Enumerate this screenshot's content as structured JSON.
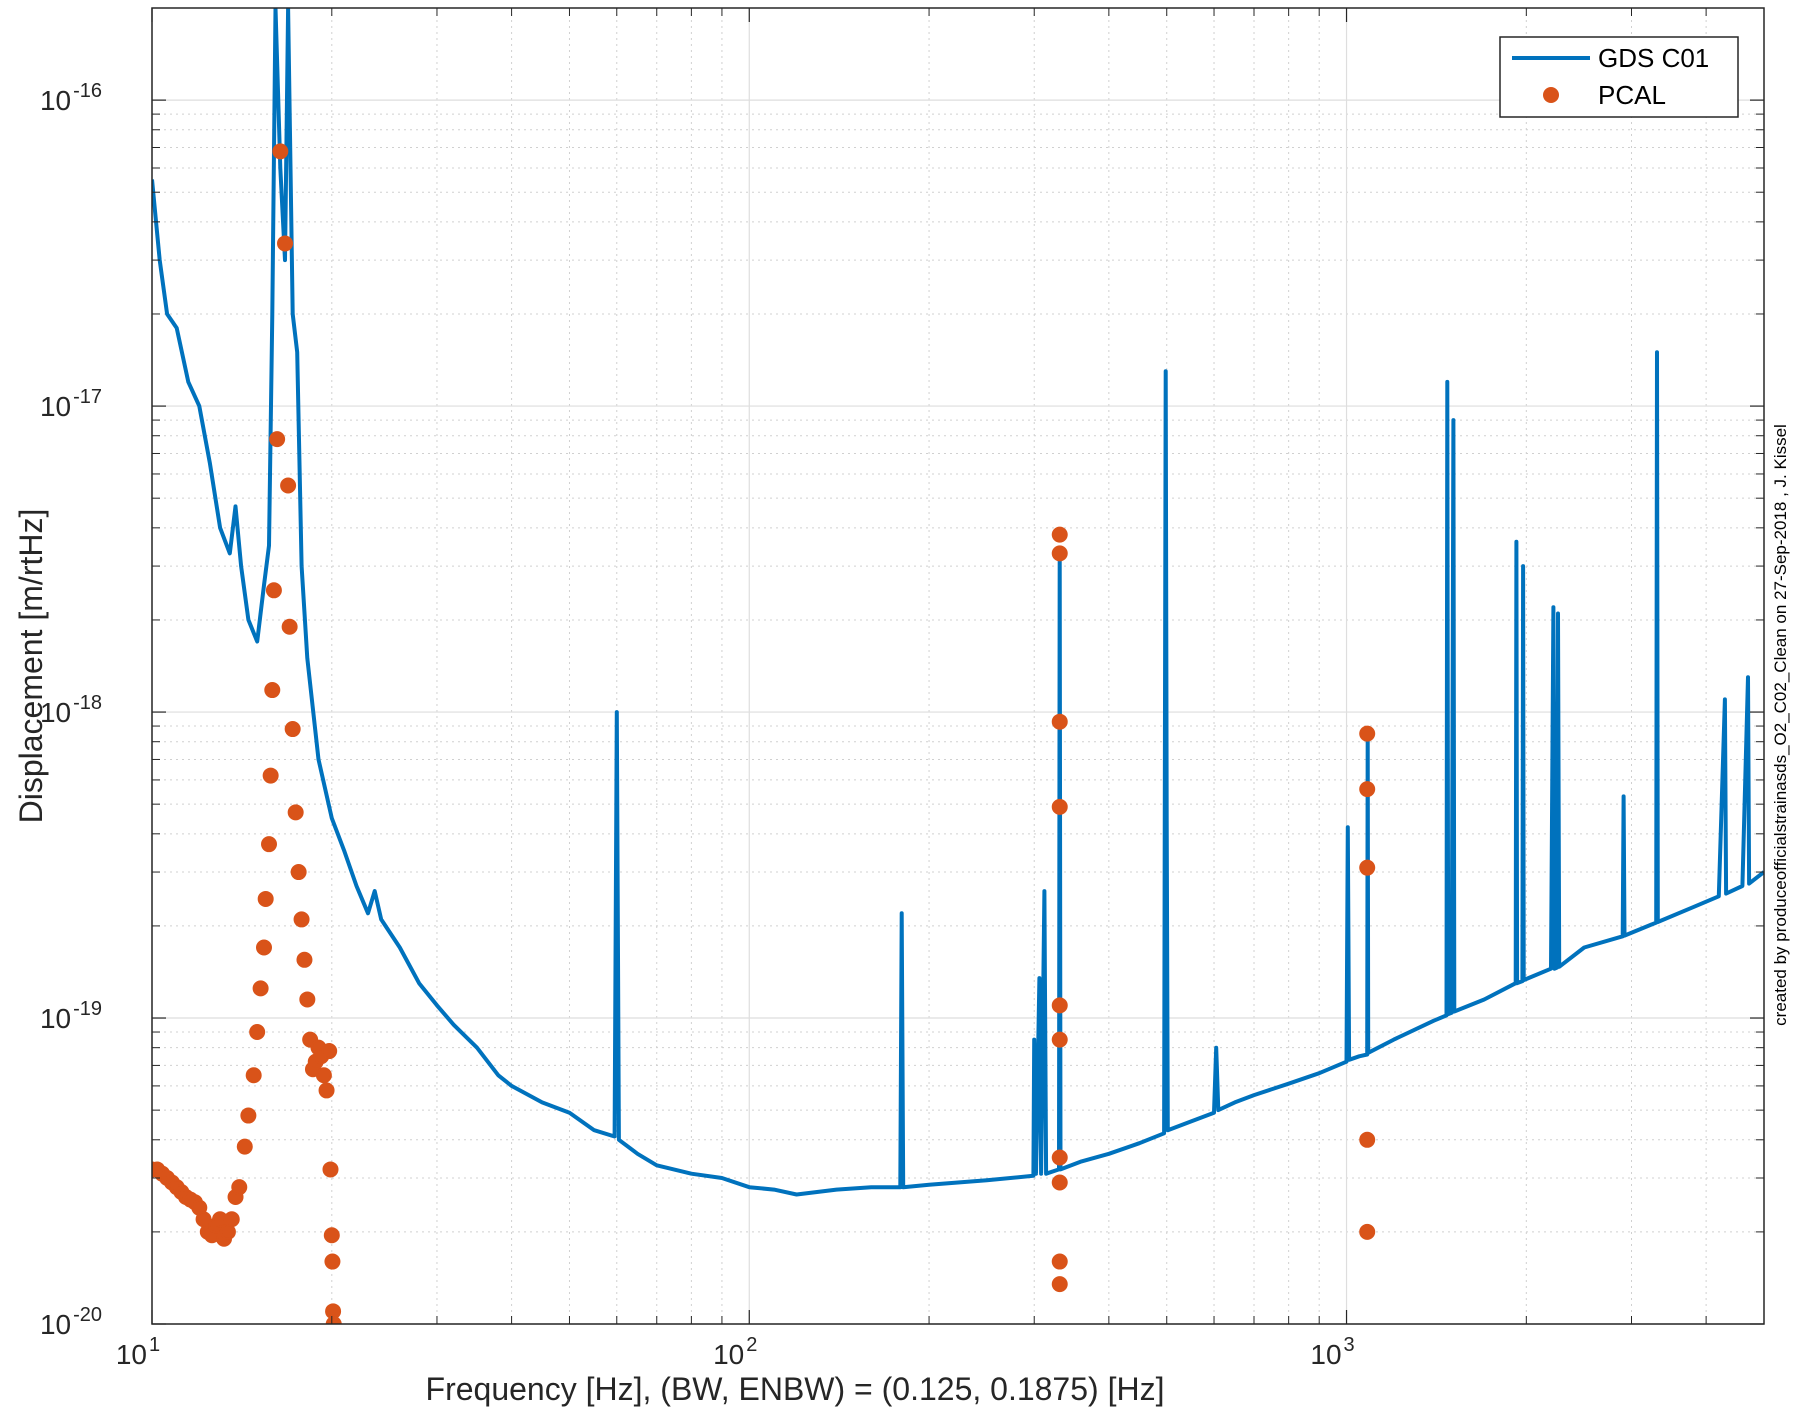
{
  "chart_data": {
    "type": "line",
    "xlabel": "Frequency [Hz], (BW, ENBW) = (0.125, 0.1875) [Hz]",
    "ylabel": "Displacement [m/rtHz]",
    "credit": "created by produceofficialstrainasds_O2_C02_Clean on 27-Sep-2018 , J. Kissel",
    "x_scale": "log",
    "y_scale": "log",
    "xlim": [
      10,
      5000
    ],
    "ylim": [
      1e-20,
      2e-16
    ],
    "x_ticks": [
      {
        "value": 10,
        "base": "10",
        "exp": "1"
      },
      {
        "value": 100,
        "base": "10",
        "exp": "2"
      },
      {
        "value": 1000,
        "base": "10",
        "exp": "3"
      }
    ],
    "y_ticks": [
      {
        "value": 1e-16,
        "base": "10",
        "exp": "-16"
      },
      {
        "value": 1e-17,
        "base": "10",
        "exp": "-17"
      },
      {
        "value": 1e-18,
        "base": "10",
        "exp": "-18"
      },
      {
        "value": 1e-19,
        "base": "10",
        "exp": "-19"
      },
      {
        "value": 1e-20,
        "base": "10",
        "exp": "-20"
      }
    ],
    "grid": true,
    "minor_grid": true,
    "legend_position": "top-right",
    "series": [
      {
        "name": "GDS C01",
        "kind": "line",
        "color": "#0072BD",
        "points": [
          [
            10,
            5.5e-17
          ],
          [
            10.3,
            3e-17
          ],
          [
            10.6,
            2e-17
          ],
          [
            11.0,
            1.8e-17
          ],
          [
            11.5,
            1.2e-17
          ],
          [
            12.0,
            1e-17
          ],
          [
            12.5,
            6.5e-18
          ],
          [
            13.0,
            4e-18
          ],
          [
            13.5,
            3.3e-18
          ],
          [
            13.8,
            4.7e-18
          ],
          [
            14.1,
            3e-18
          ],
          [
            14.5,
            2e-18
          ],
          [
            15.0,
            1.7e-18
          ],
          [
            15.4,
            2.6e-18
          ],
          [
            15.7,
            3.5e-18
          ],
          [
            15.9,
            2e-17
          ],
          [
            16.1,
            2e-16
          ],
          [
            16.4,
            6e-17
          ],
          [
            16.7,
            3e-17
          ],
          [
            16.9,
            2e-16
          ],
          [
            17.2,
            2e-17
          ],
          [
            17.5,
            1.5e-17
          ],
          [
            17.8,
            3e-18
          ],
          [
            18.2,
            1.5e-18
          ],
          [
            19.0,
            7e-19
          ],
          [
            20.0,
            4.5e-19
          ],
          [
            21.0,
            3.5e-19
          ],
          [
            22.0,
            2.7e-19
          ],
          [
            23.0,
            2.2e-19
          ],
          [
            23.6,
            2.6e-19
          ],
          [
            24.2,
            2.1e-19
          ],
          [
            26.0,
            1.7e-19
          ],
          [
            28.0,
            1.3e-19
          ],
          [
            30.0,
            1.1e-19
          ],
          [
            32.0,
            9.5e-20
          ],
          [
            35.0,
            8e-20
          ],
          [
            38.0,
            6.5e-20
          ],
          [
            40.0,
            6e-20
          ],
          [
            45.0,
            5.3e-20
          ],
          [
            50.0,
            4.9e-20
          ],
          [
            55.0,
            4.3e-20
          ],
          [
            59.5,
            4.1e-20
          ],
          [
            60.0,
            1e-18
          ],
          [
            60.5,
            4e-20
          ],
          [
            65.0,
            3.6e-20
          ],
          [
            70.0,
            3.3e-20
          ],
          [
            80.0,
            3.1e-20
          ],
          [
            90.0,
            3e-20
          ],
          [
            100.0,
            2.8e-20
          ],
          [
            110.0,
            2.75e-20
          ],
          [
            120.0,
            2.65e-20
          ],
          [
            140.0,
            2.75e-20
          ],
          [
            160.0,
            2.8e-20
          ],
          [
            179.0,
            2.8e-20
          ],
          [
            180.0,
            2.2e-19
          ],
          [
            181.0,
            2.8e-20
          ],
          [
            200.0,
            2.85e-20
          ],
          [
            250.0,
            2.95e-20
          ],
          [
            299.0,
            3.05e-20
          ],
          [
            300.0,
            8.5e-20
          ],
          [
            302.0,
            3.1e-20
          ],
          [
            306.0,
            1.35e-19
          ],
          [
            308.0,
            3.1e-20
          ],
          [
            312.0,
            2.6e-19
          ],
          [
            314.0,
            3.1e-20
          ],
          [
            330.0,
            3.2e-20
          ],
          [
            331.0,
            3.4e-18
          ],
          [
            332.0,
            3.2e-20
          ],
          [
            360.0,
            3.4e-20
          ],
          [
            400.0,
            3.6e-20
          ],
          [
            450.0,
            3.9e-20
          ],
          [
            495.0,
            4.2e-20
          ],
          [
            496.0,
            3.6e-19
          ],
          [
            498.0,
            1.3e-17
          ],
          [
            500.0,
            4.4e-19
          ],
          [
            502.0,
            4.3e-20
          ],
          [
            550.0,
            4.6e-20
          ],
          [
            600.0,
            4.9e-20
          ],
          [
            605.0,
            8e-20
          ],
          [
            610.0,
            5e-20
          ],
          [
            650.0,
            5.3e-20
          ],
          [
            700.0,
            5.6e-20
          ],
          [
            800.0,
            6.1e-20
          ],
          [
            900.0,
            6.6e-20
          ],
          [
            1000.0,
            7.2e-20
          ],
          [
            1005.0,
            4.2e-19
          ],
          [
            1010.0,
            7.3e-20
          ],
          [
            1050.0,
            7.5e-20
          ],
          [
            1083.0,
            7.6e-20
          ],
          [
            1085.0,
            8.8e-19
          ],
          [
            1087.0,
            7.7e-20
          ],
          [
            1200.0,
            8.5e-20
          ],
          [
            1400.0,
            9.8e-20
          ],
          [
            1470.0,
            1.02e-19
          ],
          [
            1475.0,
            1.2e-17
          ],
          [
            1480.0,
            1.03e-19
          ],
          [
            1500.0,
            1.04e-19
          ],
          [
            1510.0,
            9e-18
          ],
          [
            1515.0,
            1.05e-19
          ],
          [
            1700.0,
            1.15e-19
          ],
          [
            1920.0,
            1.3e-19
          ],
          [
            1925.0,
            3.6e-18
          ],
          [
            1930.0,
            1.3e-19
          ],
          [
            1970.0,
            1.32e-19
          ],
          [
            1975.0,
            3e-18
          ],
          [
            1980.0,
            1.33e-19
          ],
          [
            2200.0,
            1.45e-19
          ],
          [
            2220.0,
            2.2e-18
          ],
          [
            2230.0,
            1.45e-19
          ],
          [
            2250.0,
            1.46e-19
          ],
          [
            2260.0,
            2.1e-18
          ],
          [
            2270.0,
            1.47e-19
          ],
          [
            2500.0,
            1.7e-19
          ],
          [
            2900.0,
            1.85e-19
          ],
          [
            2910.0,
            5.3e-19
          ],
          [
            2920.0,
            1.86e-19
          ],
          [
            3300.0,
            2.05e-19
          ],
          [
            3310.0,
            1.5e-17
          ],
          [
            3320.0,
            2.06e-19
          ],
          [
            3800.0,
            2.3e-19
          ],
          [
            4200.0,
            2.5e-19
          ],
          [
            4300.0,
            1.1e-18
          ],
          [
            4320.0,
            2.55e-19
          ],
          [
            4600.0,
            2.7e-19
          ],
          [
            4700.0,
            1.3e-18
          ],
          [
            4720.0,
            2.75e-19
          ],
          [
            5000.0,
            3e-19
          ]
        ]
      },
      {
        "name": "PCAL",
        "kind": "markers",
        "color": "#D95319",
        "points": [
          [
            10.0,
            3.2e-20
          ],
          [
            10.2,
            3.2e-20
          ],
          [
            10.4,
            3.1e-20
          ],
          [
            10.6,
            3e-20
          ],
          [
            10.8,
            2.9e-20
          ],
          [
            11.0,
            2.8e-20
          ],
          [
            11.2,
            2.7e-20
          ],
          [
            11.4,
            2.6e-20
          ],
          [
            11.6,
            2.55e-20
          ],
          [
            11.8,
            2.5e-20
          ],
          [
            12.0,
            2.4e-20
          ],
          [
            12.2,
            2.2e-20
          ],
          [
            12.4,
            2e-20
          ],
          [
            12.6,
            1.95e-20
          ],
          [
            12.8,
            2.1e-20
          ],
          [
            13.0,
            2.2e-20
          ],
          [
            13.2,
            1.9e-20
          ],
          [
            13.4,
            2e-20
          ],
          [
            13.6,
            2.2e-20
          ],
          [
            13.8,
            2.6e-20
          ],
          [
            14.0,
            2.8e-20
          ],
          [
            14.3,
            3.8e-20
          ],
          [
            14.5,
            4.8e-20
          ],
          [
            14.8,
            6.5e-20
          ],
          [
            15.0,
            9e-20
          ],
          [
            15.2,
            1.25e-19
          ],
          [
            15.4,
            1.7e-19
          ],
          [
            15.5,
            2.45e-19
          ],
          [
            15.7,
            3.7e-19
          ],
          [
            15.8,
            6.2e-19
          ],
          [
            15.9,
            1.18e-18
          ],
          [
            16.0,
            2.5e-18
          ],
          [
            16.2,
            7.8e-18
          ],
          [
            16.4,
            6.8e-17
          ],
          [
            16.7,
            3.4e-17
          ],
          [
            16.9,
            5.5e-18
          ],
          [
            17.0,
            1.9e-18
          ],
          [
            17.2,
            8.8e-19
          ],
          [
            17.4,
            4.7e-19
          ],
          [
            17.6,
            3e-19
          ],
          [
            17.8,
            2.1e-19
          ],
          [
            18.0,
            1.55e-19
          ],
          [
            18.2,
            1.15e-19
          ],
          [
            18.4,
            8.5e-20
          ],
          [
            18.6,
            6.8e-20
          ],
          [
            18.8,
            7.2e-20
          ],
          [
            19.0,
            8e-20
          ],
          [
            19.2,
            7.5e-20
          ],
          [
            19.4,
            6.5e-20
          ],
          [
            19.6,
            5.8e-20
          ],
          [
            19.8,
            7.8e-20
          ],
          [
            19.9,
            3.2e-20
          ],
          [
            20.0,
            1.95e-20
          ],
          [
            20.05,
            1.6e-20
          ],
          [
            20.1,
            1.1e-20
          ],
          [
            20.15,
            1e-20
          ],
          [
            331.0,
            3.8e-18
          ],
          [
            331.0,
            3.3e-18
          ],
          [
            331.0,
            9.3e-19
          ],
          [
            331.0,
            4.9e-19
          ],
          [
            331.0,
            1.1e-19
          ],
          [
            331.0,
            8.5e-20
          ],
          [
            331.0,
            3.5e-20
          ],
          [
            331.0,
            2.9e-20
          ],
          [
            331.0,
            1.6e-20
          ],
          [
            331.0,
            1.35e-20
          ],
          [
            1083.0,
            8.5e-19
          ],
          [
            1083.0,
            5.6e-19
          ],
          [
            1083.0,
            3.1e-19
          ],
          [
            1083.0,
            4e-20
          ],
          [
            1083.0,
            2e-20
          ]
        ]
      }
    ]
  }
}
